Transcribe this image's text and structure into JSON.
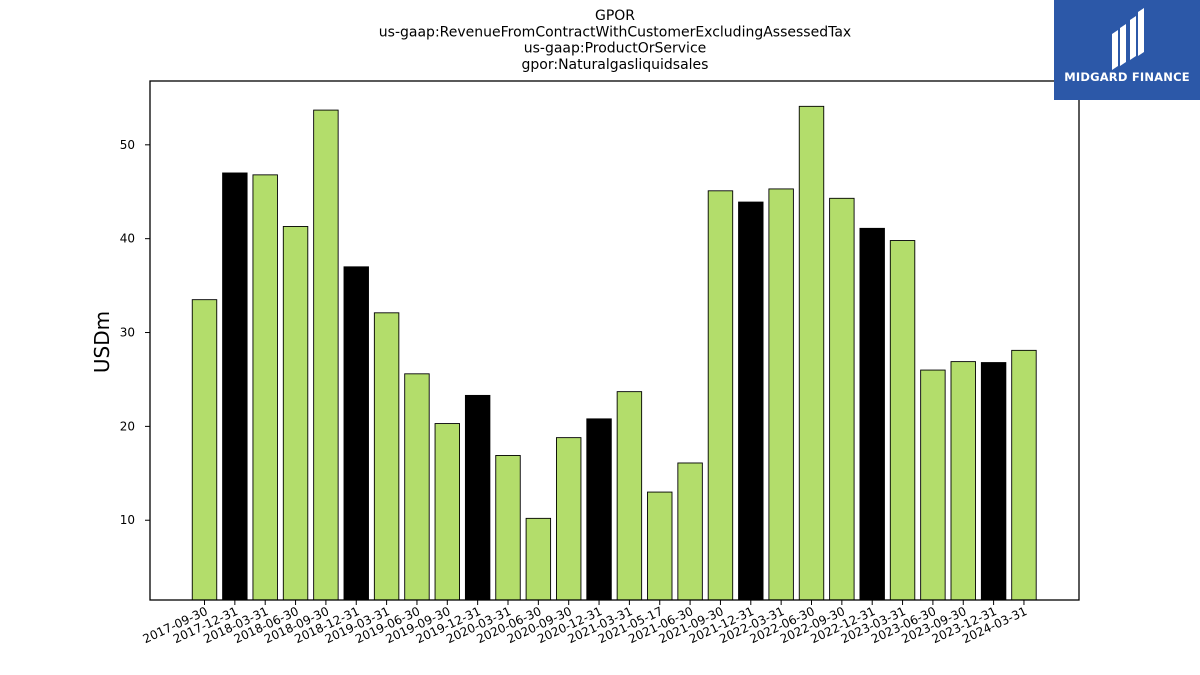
{
  "chart_data": {
    "type": "bar",
    "title_lines": [
      "GPOR",
      "us-gaap:RevenueFromContractWithCustomerExcludingAssessedTax",
      "us-gaap:ProductOrService",
      "gpor:Naturalgasliquidsales"
    ],
    "ylabel": "USDm",
    "xlabel": "",
    "ylim": [
      1.5,
      56.8
    ],
    "yticks": [
      10,
      20,
      30,
      40,
      50
    ],
    "categories": [
      "2017-09-30",
      "2017-12-31",
      "2018-03-31",
      "2018-06-30",
      "2018-09-30",
      "2018-12-31",
      "2019-03-31",
      "2019-06-30",
      "2019-09-30",
      "2019-12-31",
      "2020-03-31",
      "2020-06-30",
      "2020-09-30",
      "2020-12-31",
      "2021-03-31",
      "2021-05-17",
      "2021-06-30",
      "2021-09-30",
      "2021-12-31",
      "2022-03-31",
      "2022-06-30",
      "2022-09-30",
      "2022-12-31",
      "2023-03-31",
      "2023-06-30",
      "2023-09-30",
      "2023-12-31",
      "2024-03-31"
    ],
    "values": [
      33.5,
      47.0,
      46.8,
      41.3,
      53.7,
      37.0,
      32.1,
      25.6,
      20.3,
      23.3,
      16.9,
      10.2,
      18.8,
      20.8,
      23.7,
      13.0,
      16.1,
      45.1,
      43.9,
      45.3,
      54.1,
      44.3,
      41.1,
      39.8,
      26.0,
      26.9,
      26.8,
      28.1
    ],
    "bar_colors": [
      "#b3dd6b",
      "#000000",
      "#b3dd6b",
      "#b3dd6b",
      "#b3dd6b",
      "#000000",
      "#b3dd6b",
      "#b3dd6b",
      "#b3dd6b",
      "#000000",
      "#b3dd6b",
      "#b3dd6b",
      "#b3dd6b",
      "#000000",
      "#b3dd6b",
      "#b3dd6b",
      "#b3dd6b",
      "#b3dd6b",
      "#000000",
      "#b3dd6b",
      "#b3dd6b",
      "#b3dd6b",
      "#000000",
      "#b3dd6b",
      "#b3dd6b",
      "#b3dd6b",
      "#000000",
      "#b3dd6b"
    ],
    "grid": false,
    "legend": "none"
  },
  "logo": {
    "text": "MIDGARD FINANCE",
    "background": "#2c58a8"
  }
}
